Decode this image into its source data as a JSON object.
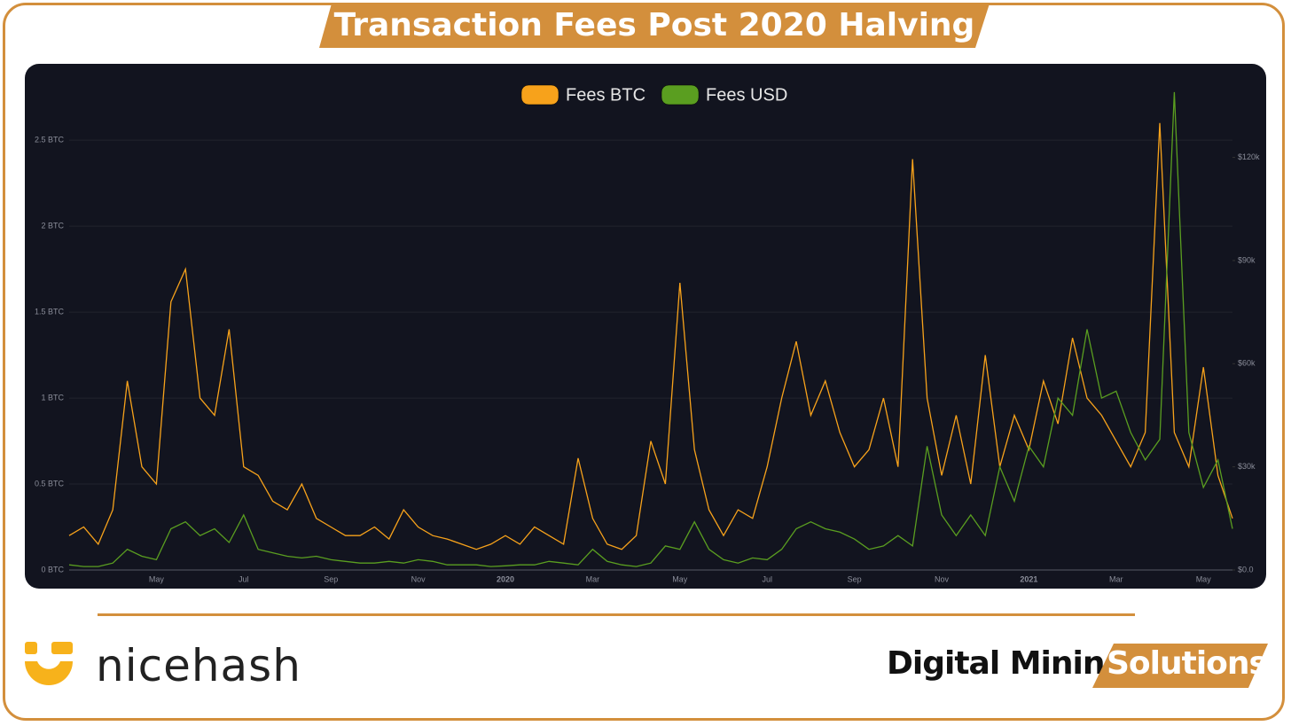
{
  "header": {
    "title": "Transaction Fees Post 2020 Halving"
  },
  "footer": {
    "logo": "nicehash",
    "tagline": "Digital Mining",
    "tagline_badge": "Solutions"
  },
  "chart_data": {
    "type": "line",
    "categories": [
      null,
      null,
      null,
      null,
      null,
      null,
      "May",
      null,
      null,
      null,
      null,
      null,
      "Jul",
      null,
      null,
      null,
      null,
      null,
      "Sep",
      null,
      null,
      null,
      null,
      null,
      "Nov",
      null,
      null,
      null,
      null,
      null,
      "2020",
      null,
      null,
      null,
      null,
      null,
      "Mar",
      null,
      null,
      null,
      null,
      null,
      "May",
      null,
      null,
      null,
      null,
      null,
      "Jul",
      null,
      null,
      null,
      null,
      null,
      "Sep",
      null,
      null,
      null,
      null,
      null,
      "Nov",
      null,
      null,
      null,
      null,
      null,
      "2021",
      null,
      null,
      null,
      null,
      null,
      "Mar",
      null,
      null,
      null,
      null,
      null,
      "May",
      null,
      null
    ],
    "series": [
      {
        "name": "Fees BTC",
        "color": "#f7a21b",
        "axis": "y",
        "values": [
          0.2,
          0.25,
          0.15,
          0.35,
          1.1,
          0.6,
          0.5,
          1.56,
          1.75,
          1.0,
          0.9,
          1.4,
          0.6,
          0.55,
          0.4,
          0.35,
          0.5,
          0.3,
          0.25,
          0.2,
          0.2,
          0.25,
          0.18,
          0.35,
          0.25,
          0.2,
          0.18,
          0.15,
          0.12,
          0.15,
          0.2,
          0.15,
          0.25,
          0.2,
          0.15,
          0.65,
          0.3,
          0.15,
          0.12,
          0.2,
          0.75,
          0.5,
          1.67,
          0.7,
          0.35,
          0.2,
          0.35,
          0.3,
          0.6,
          1.0,
          1.33,
          0.9,
          1.1,
          0.8,
          0.6,
          0.7,
          1.0,
          0.6,
          2.39,
          1.0,
          0.55,
          0.9,
          0.5,
          1.25,
          0.6,
          0.9,
          0.7,
          1.1,
          0.85,
          1.35,
          1.0,
          0.9,
          0.75,
          0.6,
          0.8,
          2.6,
          0.8,
          0.6,
          1.18,
          0.55,
          0.3
        ]
      },
      {
        "name": "Fees USD",
        "color": "#5a9e20",
        "axis": "y2",
        "values": [
          1500,
          1000,
          1000,
          2000,
          6000,
          4000,
          3000,
          12000,
          14000,
          10000,
          12000,
          8000,
          16000,
          6000,
          5000,
          4000,
          3500,
          4000,
          3000,
          2500,
          2000,
          2000,
          2500,
          2000,
          3000,
          2500,
          1500,
          1500,
          1500,
          1000,
          1200,
          1500,
          1500,
          2500,
          2000,
          1500,
          6000,
          2500,
          1500,
          1000,
          2000,
          7000,
          6000,
          14000,
          6000,
          3000,
          2000,
          3500,
          3000,
          6000,
          12000,
          14000,
          12000,
          11000,
          9000,
          6000,
          7000,
          10000,
          7000,
          36000,
          16000,
          10000,
          16000,
          10000,
          30000,
          20000,
          36000,
          30000,
          50000,
          45000,
          70000,
          50000,
          52000,
          40000,
          32000,
          38000,
          139000,
          40000,
          24000,
          32000,
          12000
        ]
      }
    ],
    "ylim": [
      0,
      2.8
    ],
    "yticks": [
      {
        "value": 0,
        "label": "0 BTC"
      },
      {
        "value": 0.5,
        "label": "0.5 BTC"
      },
      {
        "value": 1,
        "label": "1 BTC"
      },
      {
        "value": 1.5,
        "label": "1.5 BTC"
      },
      {
        "value": 2,
        "label": "2 BTC"
      },
      {
        "value": 2.5,
        "label": "2.5 BTC"
      }
    ],
    "y2lim": [
      0,
      140000
    ],
    "y2ticks": [
      {
        "value": 0,
        "label": "$0.0"
      },
      {
        "value": 30000,
        "label": "$30k"
      },
      {
        "value": 60000,
        "label": "$60k"
      },
      {
        "value": 90000,
        "label": "$90k"
      },
      {
        "value": 120000,
        "label": "$120k"
      }
    ],
    "grid": true,
    "legend": "top"
  }
}
